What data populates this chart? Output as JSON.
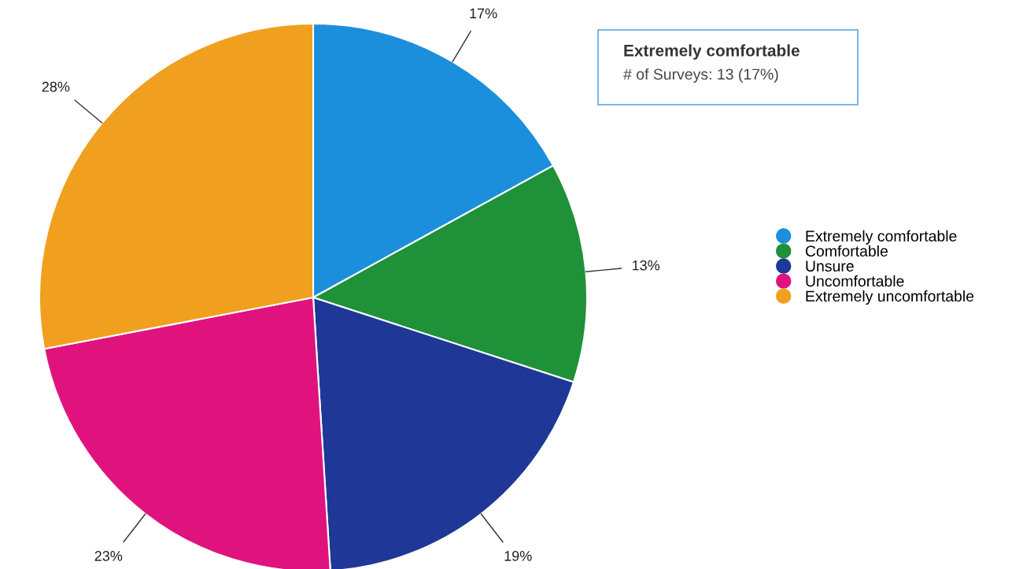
{
  "chart_data": {
    "type": "pie",
    "categories": [
      "Extremely comfortable",
      "Comfortable",
      "Unsure",
      "Uncomfortable",
      "Extremely uncomfortable"
    ],
    "values": [
      17,
      13,
      19,
      23,
      28
    ],
    "value_labels": [
      "17%",
      "13%",
      "19%",
      "23%",
      "28%"
    ],
    "colors": [
      "#1b8fdc",
      "#1f9138",
      "#1f3796",
      "#e0137e",
      "#f0a01e"
    ],
    "legend": "right",
    "annotations": [
      "Extremely comfortable",
      "# of Surveys: 13 (17%)"
    ]
  }
}
